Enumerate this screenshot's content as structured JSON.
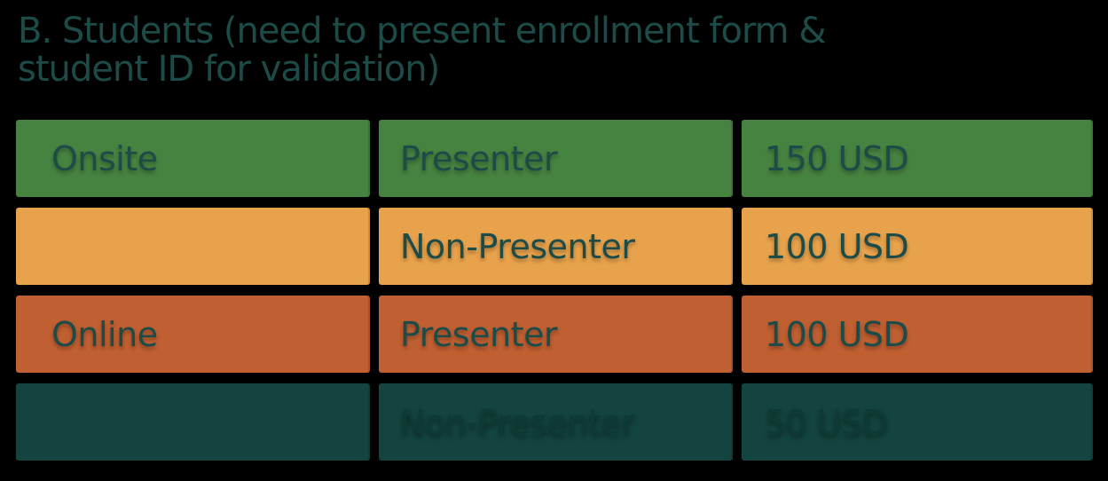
{
  "page": {
    "background_color": "#000000"
  },
  "title": {
    "line1": "B. Students (need to present enrollment form &",
    "line2": "student ID for validation)",
    "color": "#1C4B48"
  },
  "table": {
    "columns": [
      "category",
      "role",
      "price"
    ],
    "rows": [
      {
        "category": "Onsite",
        "role": "Presenter",
        "price": "150 USD",
        "bg": "#478340",
        "text_color": "#1C4B48"
      },
      {
        "category": "",
        "role": "Non-Presenter",
        "price": "100 USD",
        "bg": "#E8A24B",
        "text_color": "#1C4B48"
      },
      {
        "category": "Online",
        "role": "Presenter",
        "price": "100 USD",
        "bg": "#C05F31",
        "text_color": "#1C4B48"
      },
      {
        "category": "",
        "role": "Non-Presenter",
        "price": "50 USD",
        "bg": "#14443F",
        "text_color": "#0E3A36"
      }
    ]
  }
}
